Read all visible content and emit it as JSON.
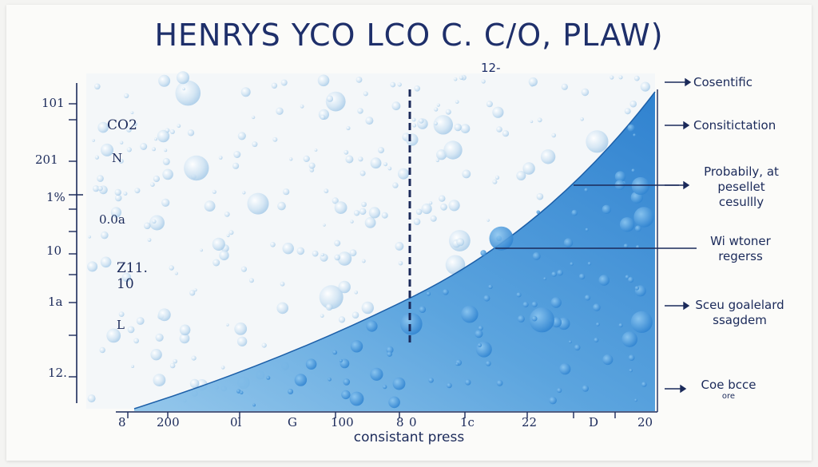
{
  "title": "HENRYS YCO LCO C. C/O, PLAW)",
  "subtitle": "12-",
  "y_axis_labels": [
    "101",
    "CO2",
    "201",
    "N",
    "1%",
    "0.0a",
    "10",
    "Z11.",
    "10",
    "1a",
    "L",
    "12."
  ],
  "x_axis_labels": [
    "8",
    "200",
    "0l",
    "G",
    "100",
    "8",
    "0",
    "1c",
    "22",
    "D",
    "20"
  ],
  "x_axis_title": "consistant press",
  "annotations": [
    {
      "lines": [
        "Cosentific"
      ]
    },
    {
      "lines": [
        "Consitictation"
      ]
    },
    {
      "lines": [
        "Probabily, at",
        "pesellet",
        "cesullly"
      ]
    },
    {
      "lines": [
        "Wi wtoner",
        "regerss"
      ]
    },
    {
      "lines": [
        "Sceu goalelard",
        "ssagdem"
      ]
    },
    {
      "lines": [
        "Coe bcce"
      ],
      "sub": "ore"
    }
  ],
  "colors": {
    "ink": "#1b2a5a",
    "area_light": "#5aa7e0",
    "area_dark": "#1a6fc4",
    "bubble": "#bcd8ee"
  }
}
